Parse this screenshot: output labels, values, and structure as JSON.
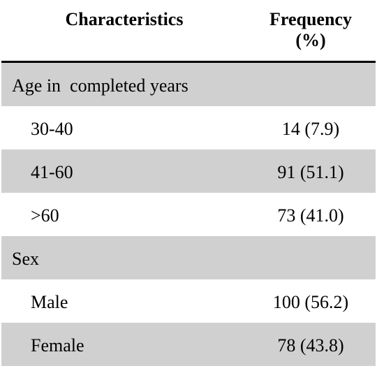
{
  "table": {
    "headers": {
      "characteristics": "Characteristics",
      "frequency_line1": "Frequency",
      "frequency_line2": "(%)"
    },
    "rows": [
      {
        "label": "Age in  completed years",
        "value": "",
        "kind": "group",
        "shaded": true
      },
      {
        "label": "30-40",
        "value": "14 (7.9)",
        "kind": "item",
        "shaded": false
      },
      {
        "label": "41-60",
        "value": "91 (51.1)",
        "kind": "item",
        "shaded": true
      },
      {
        "label": ">60",
        "value": "73 (41.0)",
        "kind": "item",
        "shaded": false
      },
      {
        "label": "Sex",
        "value": "",
        "kind": "group",
        "shaded": true
      },
      {
        "label": "Male",
        "value": "100 (56.2)",
        "kind": "item",
        "shaded": false
      },
      {
        "label": "Female",
        "value": "78 (43.8)",
        "kind": "item",
        "shaded": true
      }
    ],
    "shade_color": "#d0d0d0"
  }
}
